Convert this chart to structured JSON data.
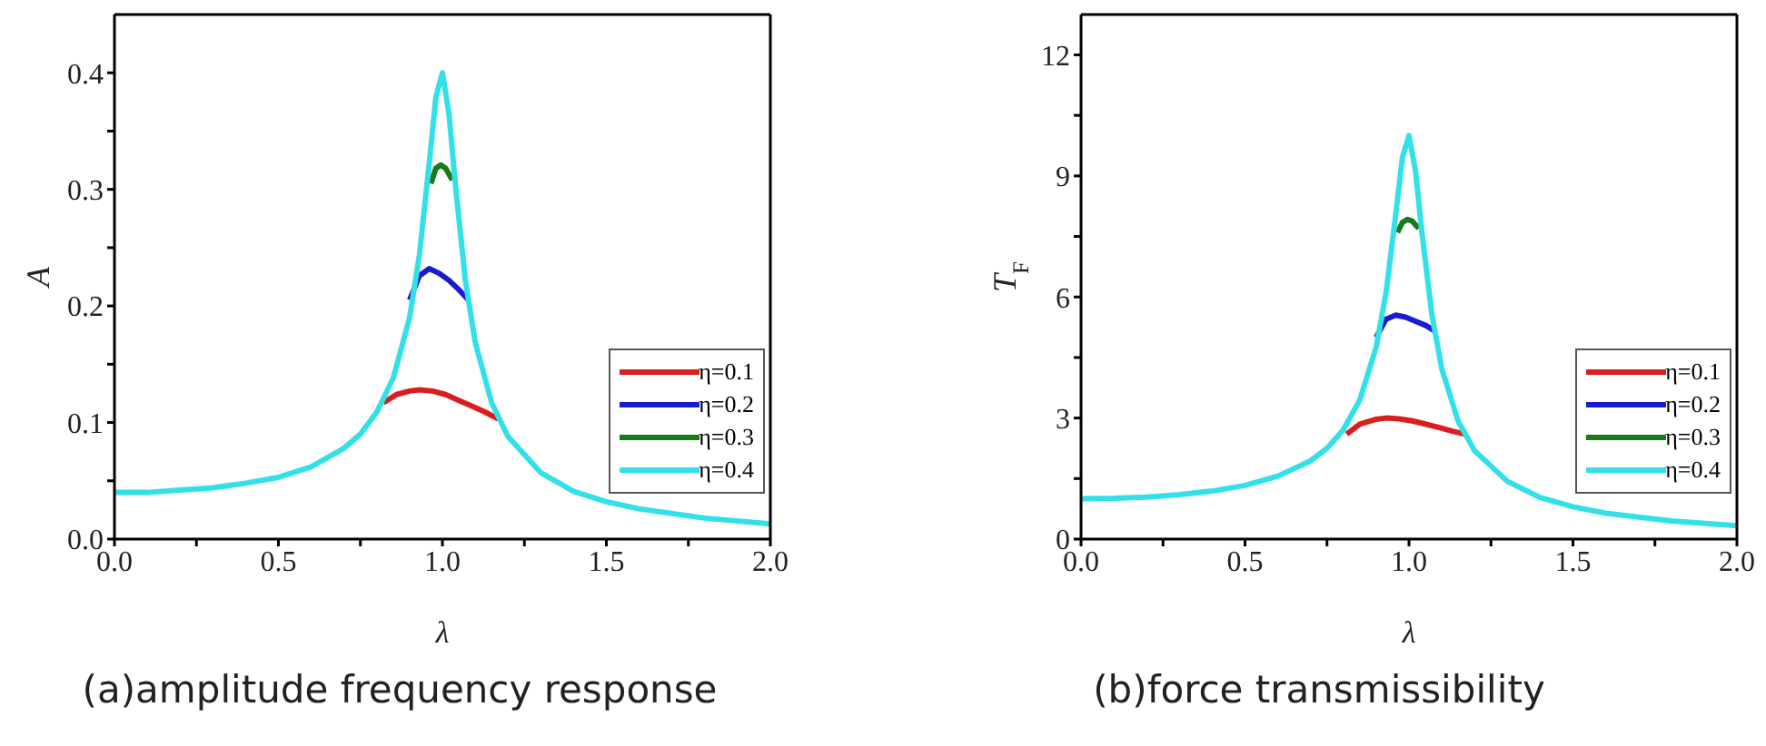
{
  "chart_data": [
    {
      "type": "line",
      "xlabel": "λ",
      "ylabel": "A",
      "annotations": [
        "(a)amplitude frequency response"
      ],
      "xlim": [
        0,
        2
      ],
      "ylim": [
        0,
        0.45
      ],
      "xticks": [
        {
          "value": 0,
          "label": "0.0"
        },
        {
          "value": 0.25,
          "label": null
        },
        {
          "value": 0.5,
          "label": "0.5"
        },
        {
          "value": 0.75,
          "label": null
        },
        {
          "value": 1,
          "label": "1.0"
        },
        {
          "value": 1.25,
          "label": null
        },
        {
          "value": 1.5,
          "label": "1.5"
        },
        {
          "value": 1.75,
          "label": null
        },
        {
          "value": 2,
          "label": "2.0"
        }
      ],
      "yticks": [
        {
          "value": 0,
          "label": "0.0"
        },
        {
          "value": 0.05,
          "label": null
        },
        {
          "value": 0.1,
          "label": "0.1"
        },
        {
          "value": 0.15,
          "label": null
        },
        {
          "value": 0.2,
          "label": "0.2"
        },
        {
          "value": 0.25,
          "label": null
        },
        {
          "value": 0.3,
          "label": "0.3"
        },
        {
          "value": 0.35,
          "label": null
        },
        {
          "value": 0.4,
          "label": "0.4"
        }
      ],
      "grid": false,
      "legend": "bottom right",
      "marker": "none",
      "line_style": "solid",
      "series": [
        {
          "name": "η=0.1",
          "color": "#d81e1e",
          "x": [
            0.82,
            0.86,
            0.9,
            0.93,
            0.97,
            1.01,
            1.05,
            1.09,
            1.13,
            1.17
          ],
          "values": [
            0.117,
            0.124,
            0.127,
            0.128,
            0.127,
            0.124,
            0.119,
            0.114,
            0.109,
            0.103
          ]
        },
        {
          "name": "η=0.2",
          "color": "#1a1ad0",
          "x": [
            0.9,
            0.93,
            0.96,
            0.99,
            1.02,
            1.05,
            1.08
          ],
          "values": [
            0.205,
            0.226,
            0.232,
            0.228,
            0.222,
            0.214,
            0.205
          ]
        },
        {
          "name": "η=0.3",
          "color": "#1a7a1a",
          "x": [
            0.965,
            0.98,
            0.995,
            1.01,
            1.03
          ],
          "values": [
            0.305,
            0.318,
            0.321,
            0.318,
            0.308
          ]
        },
        {
          "name": "η=0.4",
          "color": "#33e0e8",
          "x": [
            0,
            0.1,
            0.2,
            0.3,
            0.4,
            0.5,
            0.6,
            0.7,
            0.75,
            0.8,
            0.85,
            0.9,
            0.93,
            0.96,
            0.98,
            1.0,
            1.02,
            1.04,
            1.07,
            1.1,
            1.15,
            1.2,
            1.3,
            1.4,
            1.5,
            1.6,
            1.8,
            2.0
          ],
          "values": [
            0.04,
            0.04,
            0.042,
            0.044,
            0.048,
            0.053,
            0.062,
            0.078,
            0.09,
            0.109,
            0.138,
            0.19,
            0.244,
            0.323,
            0.379,
            0.4,
            0.365,
            0.303,
            0.222,
            0.169,
            0.117,
            0.088,
            0.057,
            0.041,
            0.032,
            0.026,
            0.018,
            0.013
          ]
        }
      ]
    },
    {
      "type": "line",
      "xlabel": "λ",
      "ylabel": "T$_{F}$",
      "annotations": [
        "(b)force transmissibility"
      ],
      "xlim": [
        0,
        2
      ],
      "ylim": [
        0,
        13
      ],
      "xticks": [
        {
          "value": 0,
          "label": "0.0"
        },
        {
          "value": 0.25,
          "label": null
        },
        {
          "value": 0.5,
          "label": "0.5"
        },
        {
          "value": 0.75,
          "label": null
        },
        {
          "value": 1,
          "label": "1.0"
        },
        {
          "value": 1.25,
          "label": null
        },
        {
          "value": 1.5,
          "label": "1.5"
        },
        {
          "value": 1.75,
          "label": null
        },
        {
          "value": 2,
          "label": "2.0"
        }
      ],
      "yticks": [
        0,
        {
          "value": 1.5,
          "label": null
        },
        3,
        {
          "value": 4.5,
          "label": null
        },
        6,
        {
          "value": 7.5,
          "label": null
        },
        9,
        {
          "value": 10.5,
          "label": null
        },
        12
      ],
      "grid": false,
      "legend": "bottom right",
      "marker": "none",
      "line_style": "solid",
      "series": [
        {
          "name": "η=0.1",
          "color": "#d81e1e",
          "x": [
            0.81,
            0.85,
            0.9,
            0.93,
            0.97,
            1.01,
            1.05,
            1.09,
            1.13,
            1.17
          ],
          "values": [
            2.6,
            2.85,
            2.97,
            3.0,
            2.98,
            2.93,
            2.85,
            2.77,
            2.68,
            2.6
          ]
        },
        {
          "name": "η=0.2",
          "color": "#1a1ad0",
          "x": [
            0.9,
            0.93,
            0.96,
            0.99,
            1.02,
            1.05,
            1.08
          ],
          "values": [
            5.0,
            5.45,
            5.55,
            5.5,
            5.4,
            5.3,
            5.15
          ]
        },
        {
          "name": "η=0.3",
          "color": "#1a7a1a",
          "x": [
            0.965,
            0.98,
            0.995,
            1.01,
            1.03
          ],
          "values": [
            7.6,
            7.85,
            7.92,
            7.88,
            7.7
          ]
        },
        {
          "name": "η=0.4",
          "color": "#33e0e8",
          "x": [
            0,
            0.1,
            0.2,
            0.3,
            0.4,
            0.5,
            0.6,
            0.7,
            0.75,
            0.8,
            0.85,
            0.9,
            0.93,
            0.96,
            0.98,
            1.0,
            1.02,
            1.04,
            1.07,
            1.1,
            1.15,
            1.2,
            1.3,
            1.4,
            1.5,
            1.6,
            1.8,
            2.0
          ],
          "values": [
            1.0,
            1.01,
            1.04,
            1.1,
            1.19,
            1.33,
            1.56,
            1.94,
            2.25,
            2.71,
            3.45,
            4.76,
            6.1,
            8.07,
            9.46,
            10,
            9.12,
            7.56,
            5.55,
            4.22,
            2.92,
            2.19,
            1.43,
            1.03,
            0.8,
            0.64,
            0.45,
            0.33
          ]
        }
      ]
    }
  ]
}
